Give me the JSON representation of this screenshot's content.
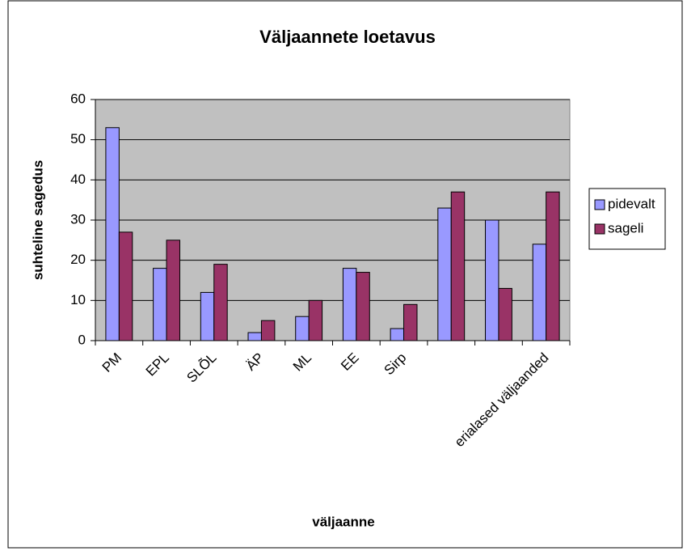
{
  "chart_data": {
    "type": "bar",
    "title": "Väljaannete loetavus",
    "xlabel": "väljaanne",
    "ylabel": "suhteline sagedus",
    "categories": [
      "PM",
      "EPL",
      "SLÕL",
      "ÄP",
      "ML",
      "EE",
      "Sirp",
      null,
      null,
      "erialased väljaanded"
    ],
    "series": [
      {
        "name": "pidevalt",
        "color": "#9999ff",
        "values": [
          53,
          18,
          12,
          2,
          6,
          18,
          3,
          33,
          30,
          24
        ]
      },
      {
        "name": "sageli",
        "color": "#993366",
        "values": [
          27,
          25,
          19,
          5,
          10,
          17,
          9,
          37,
          13,
          37
        ]
      }
    ],
    "ylim": [
      0,
      60
    ],
    "yticks": [
      0,
      10,
      20,
      30,
      40,
      50,
      60
    ],
    "grid": true,
    "legend": "right"
  }
}
